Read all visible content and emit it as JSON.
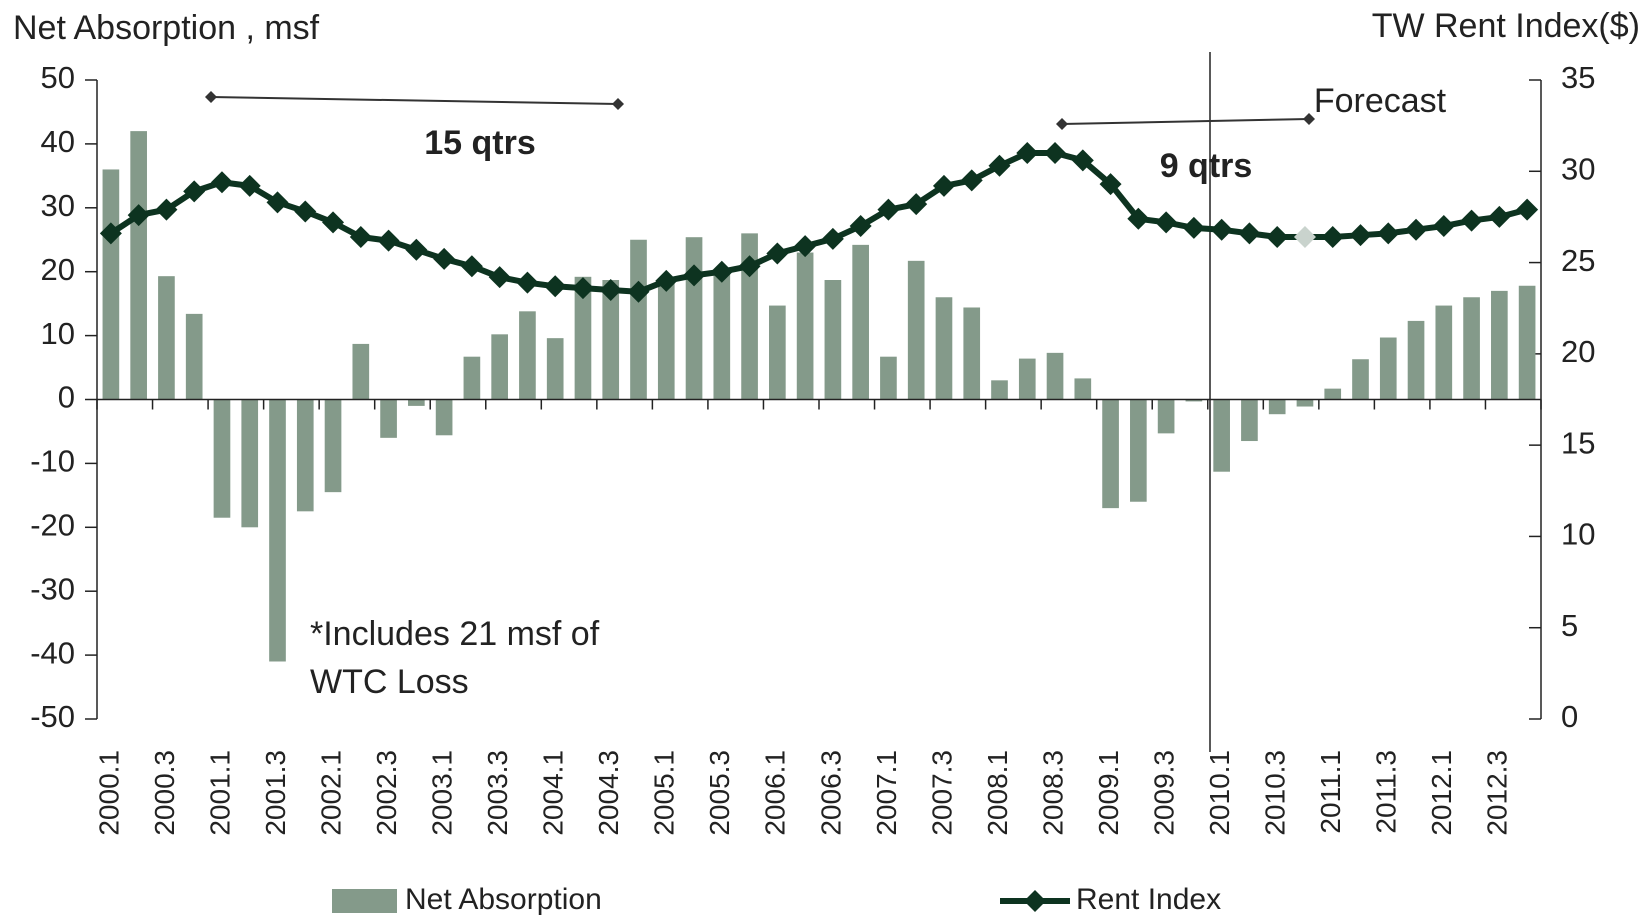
{
  "chart_data": {
    "type": "bar",
    "ylabel": "Net Absorption , msf",
    "y2label": "TW Rent Index($)",
    "categories": [
      "2000.1",
      null,
      "2000.3",
      null,
      "2001.1",
      null,
      "2001.3",
      null,
      "2002.1",
      null,
      "2002.3",
      null,
      "2003.1",
      null,
      "2003.3",
      null,
      "2004.1",
      null,
      "2004.3",
      null,
      "2005.1",
      null,
      "2005.3",
      null,
      "2006.1",
      null,
      "2006.3",
      null,
      "2007.1",
      null,
      "2007.3",
      null,
      "2008.1",
      null,
      "2008.3",
      null,
      "2009.1",
      null,
      "2009.3",
      null,
      "2010.1",
      null,
      "2010.3",
      null,
      "2011.1",
      null,
      "2011.3",
      null,
      "2012.1",
      null,
      "2012.3",
      null
    ],
    "series": [
      {
        "name": "Net Absorption",
        "type": "bar",
        "color": "#849a8a",
        "values": [
          36,
          42,
          19.3,
          13.4,
          -18.5,
          -20,
          -41,
          -17.5,
          -14.5,
          8.7,
          -6,
          -1,
          -5.6,
          6.7,
          10.2,
          13.8,
          9.6,
          19.2,
          18.7,
          25,
          19,
          25.4,
          20,
          26,
          14.7,
          23,
          18.7,
          24.2,
          6.7,
          21.7,
          16,
          14.4,
          3,
          6.4,
          7.3,
          3.3,
          -17,
          -16,
          -5.3,
          -0.3,
          -11.3,
          -6.5,
          -2.3,
          -1.1,
          1.7,
          6.3,
          9.7,
          12.3,
          14.7,
          16,
          17,
          17.8
        ]
      },
      {
        "name": "Rent Index",
        "type": "line",
        "axis": "y2",
        "color": "#0d3320",
        "highlight": {
          "index": 43,
          "color": "#c9d3cd"
        },
        "values": [
          26.6,
          27.6,
          27.9,
          28.9,
          29.4,
          29.2,
          28.3,
          27.8,
          27.2,
          26.4,
          26.2,
          25.7,
          25.2,
          24.8,
          24.2,
          23.9,
          23.7,
          23.6,
          23.5,
          23.4,
          24.0,
          24.3,
          24.5,
          24.8,
          25.5,
          25.9,
          26.3,
          27.0,
          27.9,
          28.2,
          29.2,
          29.5,
          30.3,
          31.0,
          31.0,
          30.6,
          29.3,
          27.4,
          27.2,
          26.9,
          26.8,
          26.6,
          26.4,
          26.4,
          26.4,
          26.5,
          26.6,
          26.8,
          27.0,
          27.3,
          27.5,
          27.9
        ]
      }
    ],
    "ylim": [
      -50,
      50
    ],
    "yticks": [
      -50,
      -40,
      -30,
      -20,
      -10,
      0,
      10,
      20,
      30,
      40,
      50
    ],
    "y2lim": [
      0,
      35
    ],
    "y2ticks": [
      0,
      5,
      10,
      15,
      20,
      25,
      30,
      35
    ],
    "annotations": [
      "15 qtrs",
      "9 qtrs",
      "Forecast",
      "*Includes 21 msf of",
      "WTC Loss"
    ],
    "legend": "bottom"
  }
}
